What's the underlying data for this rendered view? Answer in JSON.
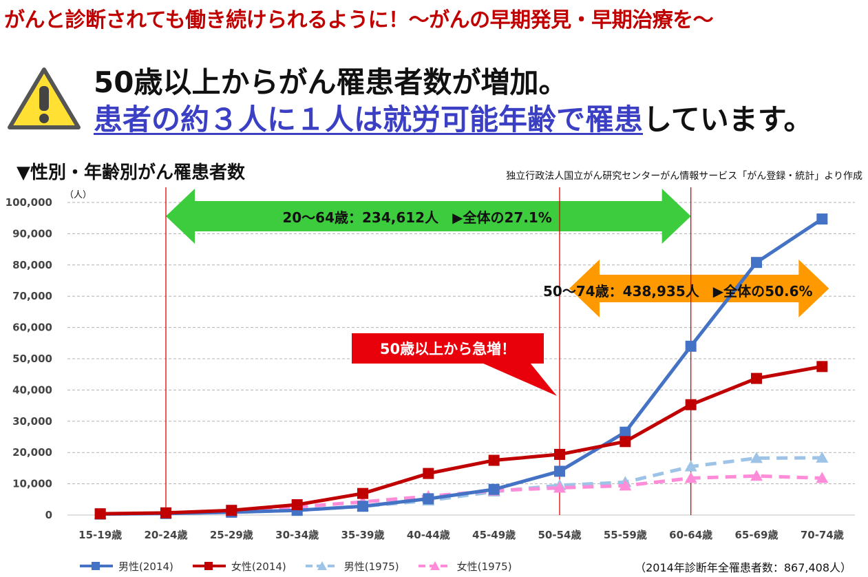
{
  "banner": "がんと診断されても働き続けられるように！～がんの早期発見・早期治療を～",
  "headline_line1": "50歳以上からがん罹患者数が増加。",
  "headline_line2_highlight": "患者の約３人に１人は就労可能年齢で罹患",
  "headline_line2_rest": "しています。",
  "chart_heading": "▼性別・年齢別がん罹患者数",
  "source": "独立行政法人国立がん研究センターがん情報サービス「がん登録・統計」より作成",
  "unit_label": "（人）",
  "total_note": "（2014年診断年全罹患者数：867,408人）",
  "callout": "50歳以上から急増！",
  "ranges": {
    "working_age": {
      "label": "20～64歳：234,612人　▶全体の27.1%",
      "from": "20-24歳",
      "to": "60-64歳",
      "color": "#3dcc3d"
    },
    "over_50": {
      "label": "50～74歳：438,935人　▶全体の50.6%",
      "from": "50-54歳",
      "to": "70-74歳",
      "color": "#ff9900"
    }
  },
  "chart_data": {
    "type": "line",
    "categories": [
      "15-19歳",
      "20-24歳",
      "25-29歳",
      "30-34歳",
      "35-39歳",
      "40-44歳",
      "45-49歳",
      "50-54歳",
      "55-59歳",
      "60-64歳",
      "65-69歳",
      "70-74歳"
    ],
    "ylim": [
      0,
      100000
    ],
    "yticks": [
      "0",
      "10,000",
      "20,000",
      "30,000",
      "40,000",
      "50,000",
      "60,000",
      "70,000",
      "80,000",
      "90,000",
      "100,000"
    ],
    "grid": true,
    "legend_position": "bottom",
    "series": [
      {
        "name": "男性(2014)",
        "color": "#4472c4",
        "style": "solid",
        "marker": "square",
        "values": [
          300,
          500,
          900,
          1500,
          2800,
          5200,
          8200,
          14000,
          26500,
          54000,
          80800,
          94700
        ]
      },
      {
        "name": "女性(2014)",
        "color": "#c00000",
        "style": "solid",
        "marker": "square",
        "values": [
          400,
          700,
          1500,
          3300,
          6900,
          13300,
          17500,
          19400,
          23500,
          35300,
          43700,
          47500
        ]
      },
      {
        "name": "男性(1975)",
        "color": "#9dc3e6",
        "style": "dashed",
        "marker": "triangle",
        "values": [
          300,
          500,
          900,
          1500,
          2800,
          4600,
          7500,
          9500,
          10500,
          15500,
          18200,
          18300
        ]
      },
      {
        "name": "女性(1975)",
        "color": "#ff8cd9",
        "style": "dashed",
        "marker": "triangle",
        "values": [
          300,
          600,
          1300,
          2600,
          4200,
          6000,
          7800,
          8700,
          9400,
          11800,
          12500,
          11800
        ]
      }
    ]
  }
}
